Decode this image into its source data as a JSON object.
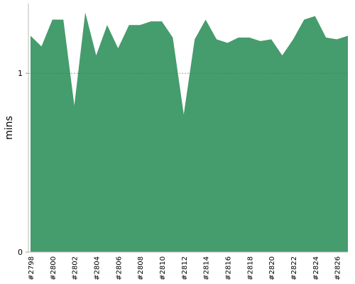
{
  "chart_data": {
    "type": "area",
    "y_label": "mins",
    "categories": [
      "#2798",
      null,
      "#2800",
      null,
      "#2802",
      null,
      "#2804",
      null,
      "#2806",
      null,
      "#2808",
      null,
      "#2810",
      null,
      "#2812",
      null,
      "#2814",
      null,
      "#2816",
      null,
      "#2818",
      null,
      "#2820",
      null,
      "#2822",
      null,
      "#2824",
      null,
      "#2826",
      null
    ],
    "values": [
      1.21,
      1.15,
      1.3,
      1.3,
      0.82,
      1.34,
      1.1,
      1.27,
      1.14,
      1.27,
      1.27,
      1.29,
      1.29,
      1.2,
      0.77,
      1.19,
      1.3,
      1.19,
      1.17,
      1.2,
      1.2,
      1.18,
      1.19,
      1.1,
      1.19,
      1.3,
      1.32,
      1.2,
      1.19,
      1.21
    ],
    "color": "#459c6c",
    "ylim": [
      0,
      1.39
    ],
    "yticks": [
      0,
      1
    ],
    "grid": true
  }
}
